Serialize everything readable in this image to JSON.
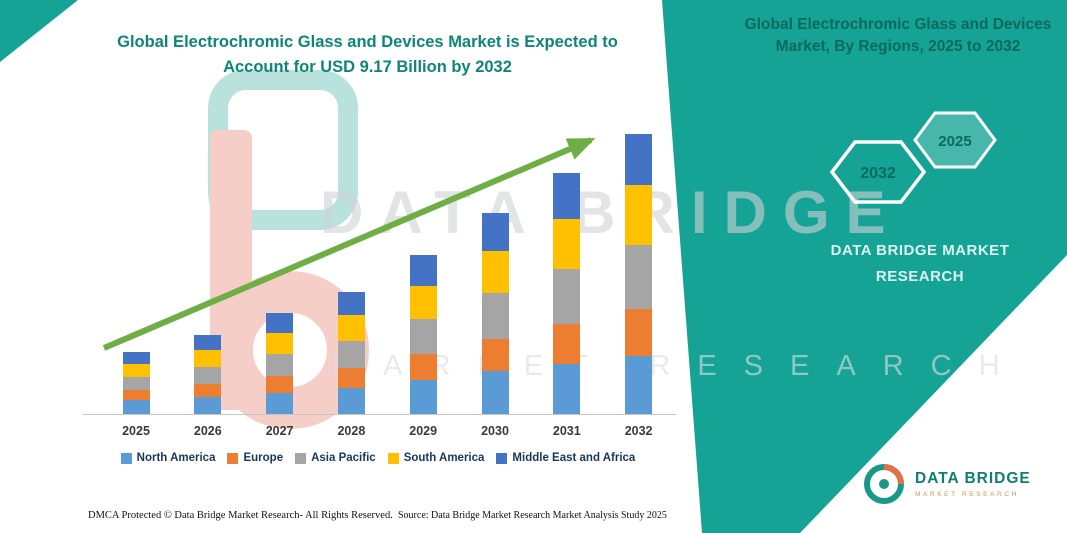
{
  "colors": {
    "band": "#14A395",
    "title": "#0D8579",
    "arrow": "#6FAE44",
    "watermark": "#CFD3D7",
    "legend_text": "#17375D"
  },
  "chart_data": {
    "type": "bar",
    "stacked": true,
    "units": "USD Billion",
    "title": "Global Electrochromic Glass and Devices Market is Expected to Account for USD 9.17 Billion by 2032",
    "xlabel": "",
    "ylabel": "",
    "gridlines": false,
    "y_axis_visible": false,
    "legend_position": "bottom",
    "annotations": [
      "upward green trend arrow"
    ],
    "categories": [
      "2025",
      "2026",
      "2027",
      "2028",
      "2029",
      "2030",
      "2031",
      "2032"
    ],
    "series": [
      {
        "name": "North America",
        "color": "#5B9BD5",
        "values": [
          0.45,
          0.55,
          0.7,
          0.85,
          1.1,
          1.4,
          1.65,
          1.9
        ]
      },
      {
        "name": "Europe",
        "color": "#ED7D31",
        "values": [
          0.33,
          0.42,
          0.53,
          0.65,
          0.85,
          1.05,
          1.3,
          1.55
        ]
      },
      {
        "name": "Asia Pacific",
        "color": "#A5A5A5",
        "values": [
          0.45,
          0.58,
          0.73,
          0.9,
          1.15,
          1.5,
          1.8,
          2.1
        ]
      },
      {
        "name": "South America",
        "color": "#FFC000",
        "values": [
          0.42,
          0.55,
          0.7,
          0.85,
          1.1,
          1.4,
          1.65,
          1.95
        ]
      },
      {
        "name": "Middle East and Africa",
        "color": "#4472C4",
        "values": [
          0.4,
          0.5,
          0.64,
          0.75,
          1.0,
          1.25,
          1.5,
          1.67
        ]
      }
    ],
    "estimated_totals": [
      2.05,
      2.6,
      3.3,
      4.0,
      5.2,
      6.6,
      7.9,
      9.17
    ],
    "final_value_label": "USD 9.17 Billion by 2032"
  },
  "side_panel": {
    "heading": "Global Electrochromic Glass and Devices Market, By Regions, 2025 to 2032",
    "hexagons": [
      "2032",
      "2025"
    ],
    "brand_line1": "DATA BRIDGE MARKET",
    "brand_line2": "RESEARCH"
  },
  "watermark": {
    "line1": "DATA BRIDGE",
    "line2": "MARKET RESEARCH"
  },
  "footer": {
    "dmca": "DMCA Protected © Data Bridge Market Research- All Rights Reserved.",
    "source": "Source: Data Bridge Market Research Market Analysis Study 2025"
  },
  "logo": {
    "name": "DATA BRIDGE",
    "tagline": "MARKET RESEARCH"
  }
}
